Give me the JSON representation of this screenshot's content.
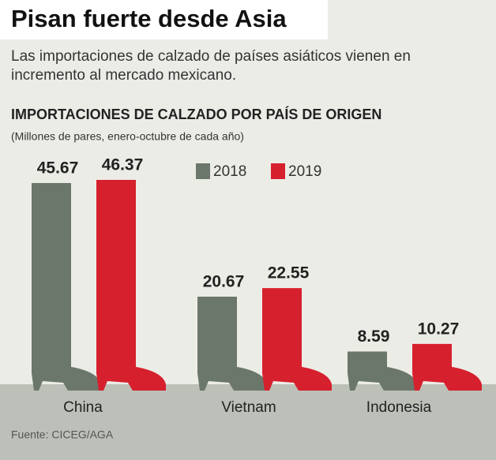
{
  "chart_data": {
    "type": "bar",
    "title": "Pisan fuerte desde Asia",
    "subtitle": "Las importaciones de calzado de países asiáticos vienen en incremento al mercado mexicano.",
    "chart_title": "IMPORTACIONES DE CALZADO POR PAÍS DE ORIGEN",
    "unit_note": "(Millones de pares, enero-octubre de cada año)",
    "source": "Fuente: CICEG/AGA",
    "categories": [
      "China",
      "Vietnam",
      "Indonesia"
    ],
    "series": [
      {
        "name": "2018",
        "color": "#6b776a",
        "values": [
          45.67,
          20.67,
          8.59
        ]
      },
      {
        "name": "2019",
        "color": "#d6202e",
        "values": [
          46.37,
          22.55,
          10.27
        ]
      }
    ]
  }
}
